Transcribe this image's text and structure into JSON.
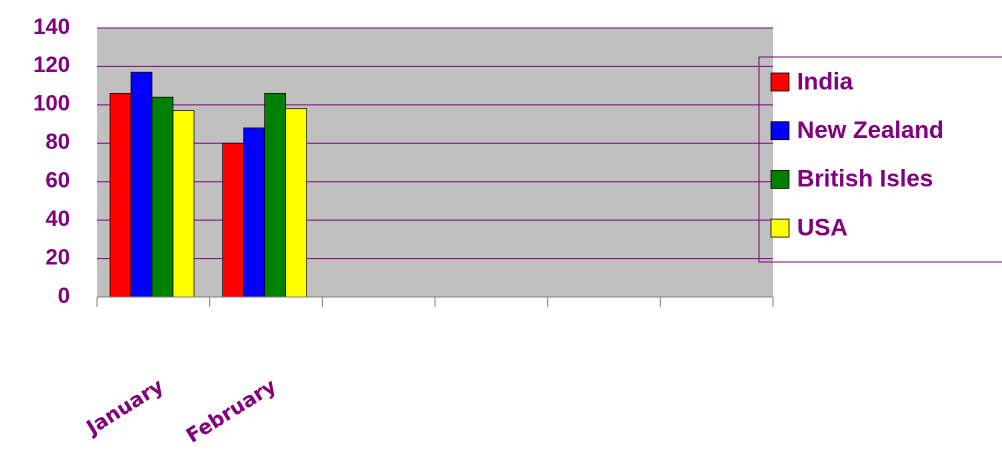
{
  "chart_data": {
    "type": "bar",
    "categories": [
      "January",
      "February",
      null,
      null,
      null,
      null
    ],
    "series": [
      {
        "name": "India",
        "color": "#ff0000",
        "values": [
          106,
          80,
          null,
          null,
          null,
          null
        ]
      },
      {
        "name": "New Zealand",
        "color": "#0000ff",
        "values": [
          117,
          88,
          null,
          null,
          null,
          null
        ]
      },
      {
        "name": "British Isles",
        "color": "#008000",
        "values": [
          104,
          106,
          null,
          null,
          null,
          null
        ]
      },
      {
        "name": "USA",
        "color": "#ffff00",
        "values": [
          97,
          98,
          null,
          null,
          null,
          null
        ]
      }
    ],
    "ylim": [
      0,
      140
    ],
    "yticks": [
      0,
      20,
      40,
      60,
      80,
      100,
      120,
      140
    ],
    "grid": true,
    "legend": "right"
  }
}
